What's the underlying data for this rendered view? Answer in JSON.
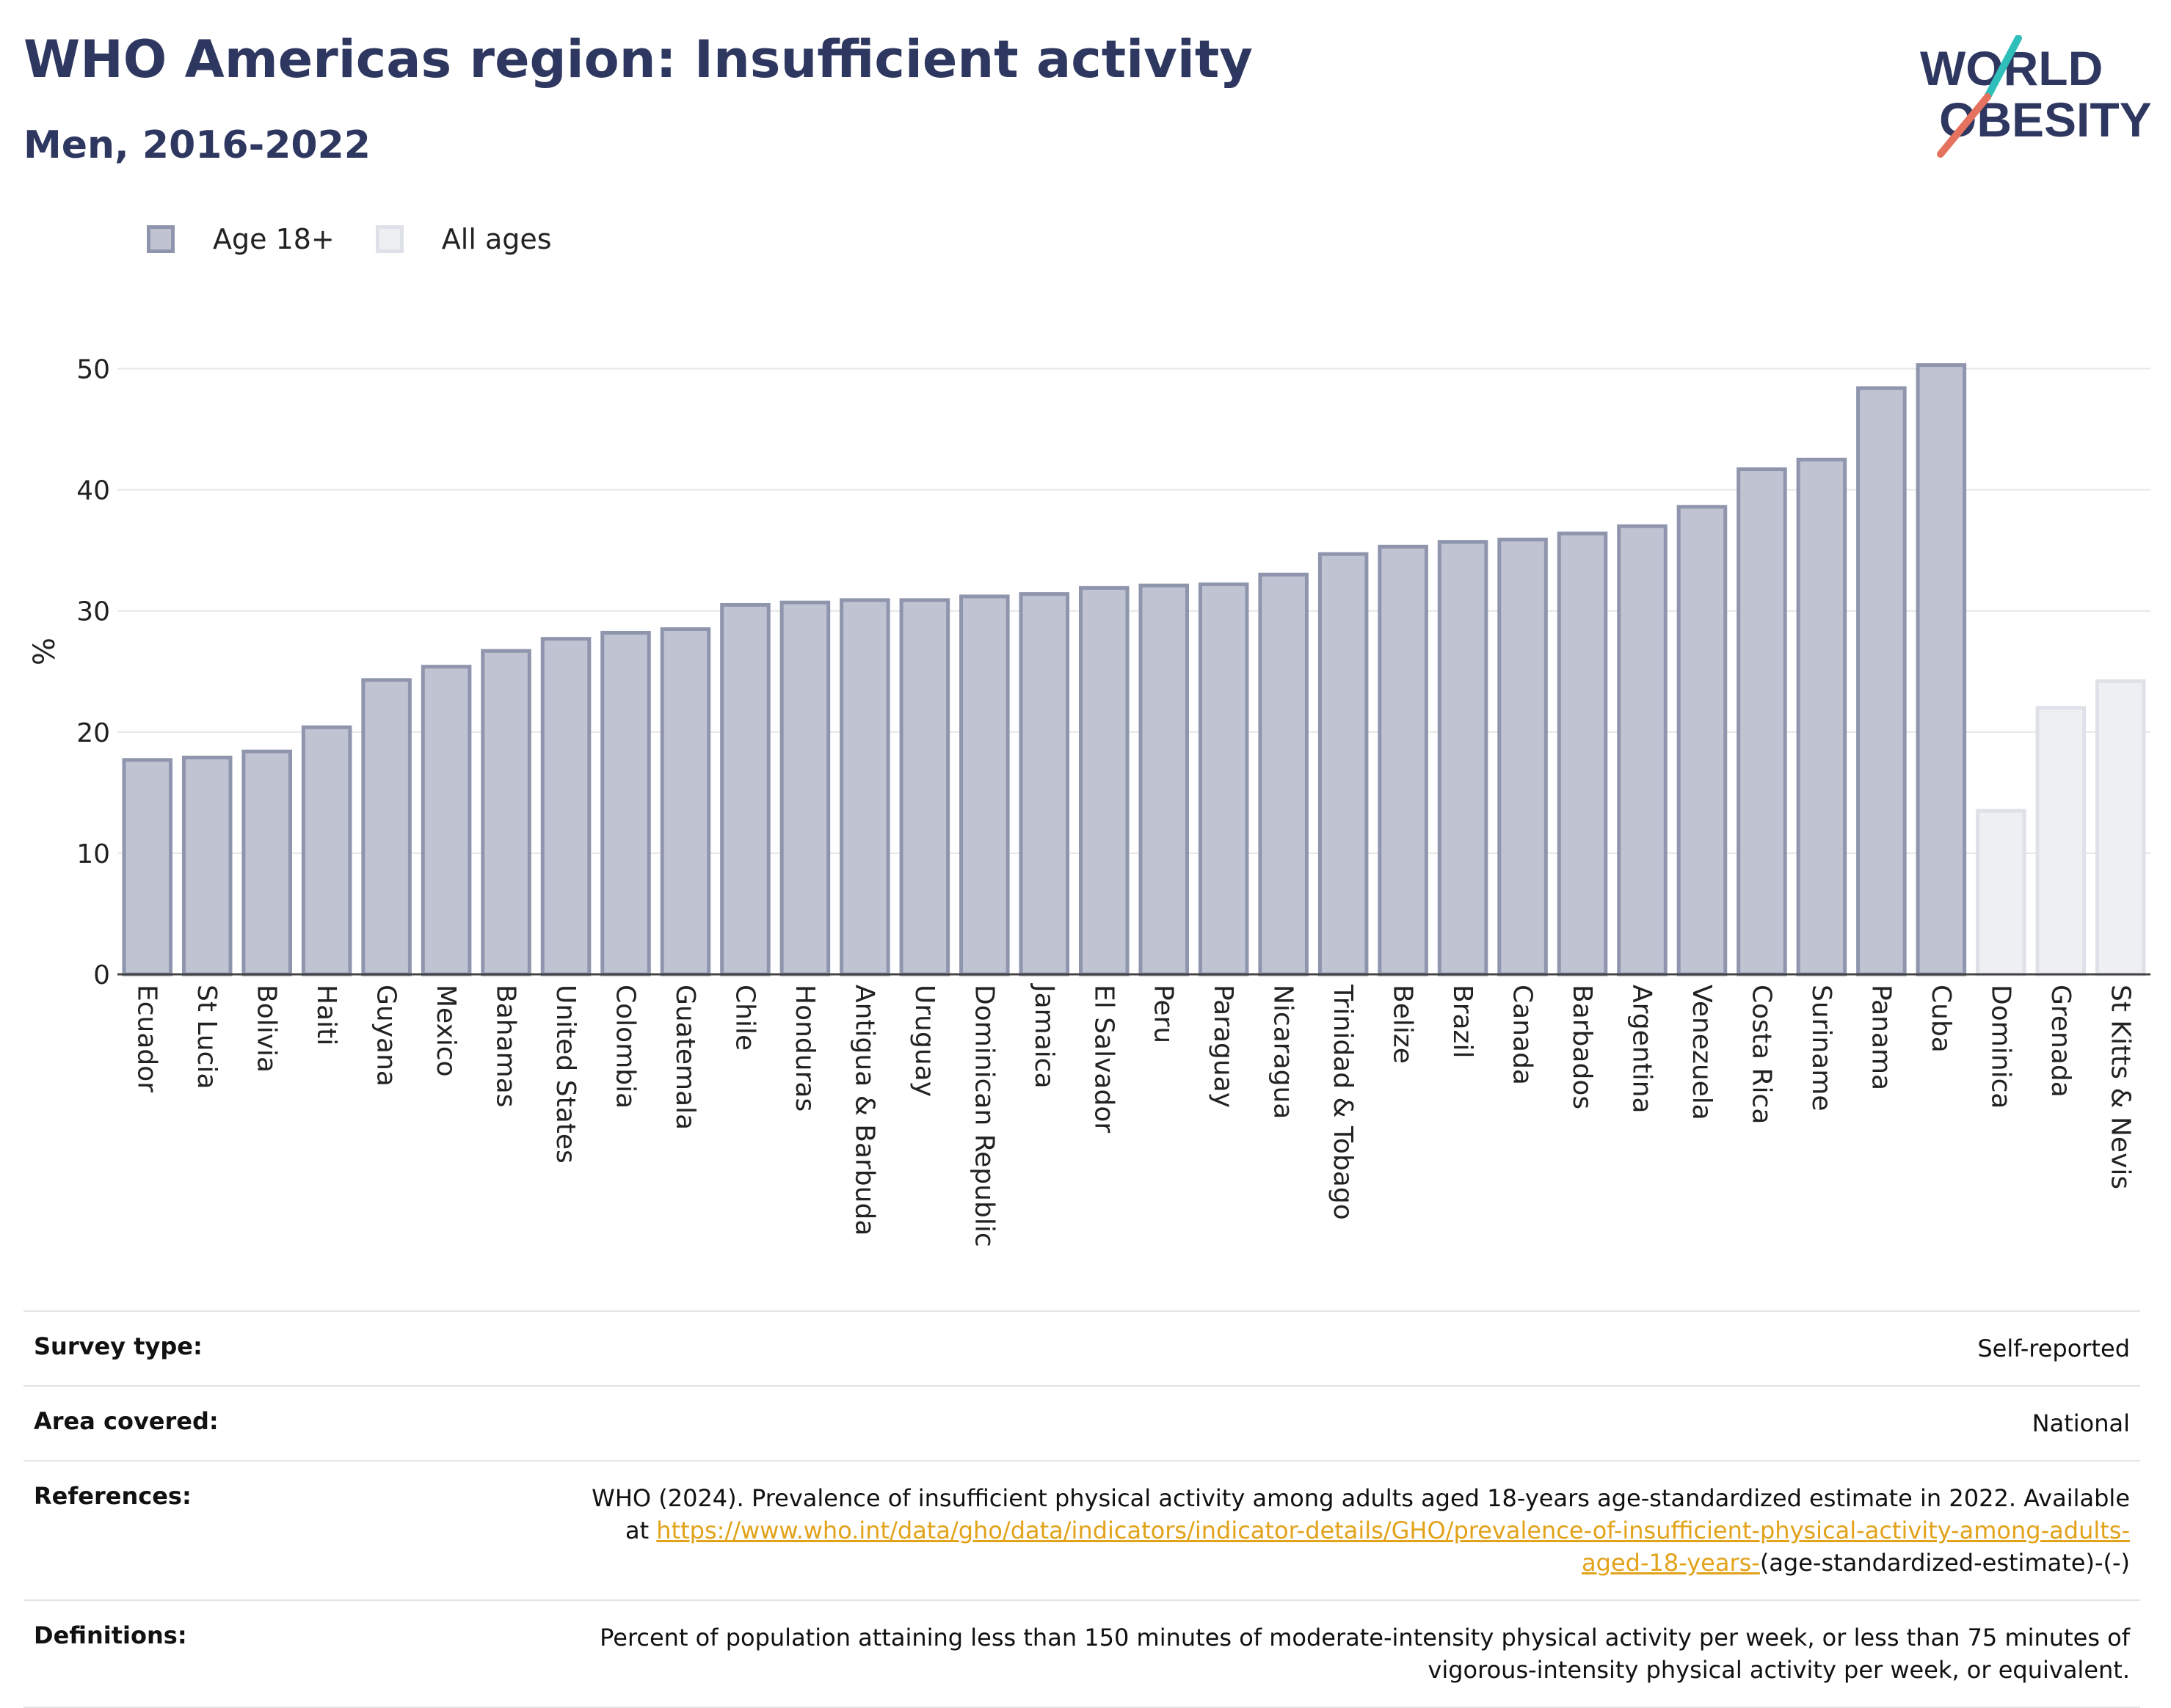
{
  "header": {
    "title": "WHO Americas region: Insufficient activity",
    "subtitle": "Men, 2016-2022"
  },
  "logo": {
    "line1": "WORLD",
    "line2": "OBESITY"
  },
  "legend": [
    {
      "label": "Age 18+",
      "color": "#bfc3d2"
    },
    {
      "label": "All ages",
      "color": "#eeeff3"
    }
  ],
  "chart_data": {
    "type": "bar",
    "ylabel": "%",
    "xlabel": "",
    "ylim": [
      0,
      55
    ],
    "yticks": [
      0,
      10,
      20,
      30,
      40,
      50
    ],
    "grid": true,
    "legend_position": "top-left",
    "categories": [
      "Ecuador",
      "St Lucia",
      "Bolivia",
      "Haiti",
      "Guyana",
      "Mexico",
      "Bahamas",
      "United States",
      "Colombia",
      "Guatemala",
      "Chile",
      "Honduras",
      "Antigua & Barbuda",
      "Uruguay",
      "Dominican Republic",
      "Jamaica",
      "El Salvador",
      "Peru",
      "Paraguay",
      "Nicaragua",
      "Trinidad & Tobago",
      "Belize",
      "Brazil",
      "Canada",
      "Barbados",
      "Argentina",
      "Venezuela",
      "Costa Rica",
      "Suriname",
      "Panama",
      "Cuba",
      "Dominica",
      "Grenada",
      "St Kitts & Nevis"
    ],
    "values": [
      17.7,
      17.9,
      18.4,
      20.4,
      24.3,
      25.4,
      26.7,
      27.7,
      28.2,
      28.5,
      30.5,
      30.7,
      30.9,
      30.9,
      31.2,
      31.4,
      31.9,
      32.1,
      32.2,
      33.0,
      34.7,
      35.3,
      35.7,
      35.9,
      36.4,
      37.0,
      38.6,
      41.7,
      42.5,
      48.4,
      50.3,
      13.5,
      22.0,
      24.2
    ],
    "series_group": [
      "Age 18+",
      "Age 18+",
      "Age 18+",
      "Age 18+",
      "Age 18+",
      "Age 18+",
      "Age 18+",
      "Age 18+",
      "Age 18+",
      "Age 18+",
      "Age 18+",
      "Age 18+",
      "Age 18+",
      "Age 18+",
      "Age 18+",
      "Age 18+",
      "Age 18+",
      "Age 18+",
      "Age 18+",
      "Age 18+",
      "Age 18+",
      "Age 18+",
      "Age 18+",
      "Age 18+",
      "Age 18+",
      "Age 18+",
      "Age 18+",
      "Age 18+",
      "Age 18+",
      "Age 18+",
      "Age 18+",
      "All ages",
      "All ages",
      "All ages"
    ],
    "colors": {
      "Age 18+": {
        "fill": "#bfc3d2",
        "stroke": "#8f95ad"
      },
      "All ages": {
        "fill": "#eeeff3",
        "stroke": "#dfe1e8"
      }
    }
  },
  "info_table": {
    "survey_type": {
      "label": "Survey type:",
      "value": "Self-reported"
    },
    "area_covered": {
      "label": "Area covered:",
      "value": "National"
    },
    "references": {
      "label": "References:",
      "text": "WHO (2024). Prevalence of insufficient physical activity among adults aged 18-years age-standardized estimate in 2022. Available at ",
      "link": "https://www.who.int/data/gho/data/indicators/indicator-details/GHO/prevalence-of-insufficient-physical-activity-among-adults-aged-18-years-",
      "suffix": "(age-standardized-estimate)-(-)"
    },
    "definitions": {
      "label": "Definitions:",
      "value": "Percent of population attaining less than 150 minutes of moderate-intensity physical activity per week, or less than 75 minutes of vigorous-intensity physical activity per week, or equivalent."
    }
  }
}
